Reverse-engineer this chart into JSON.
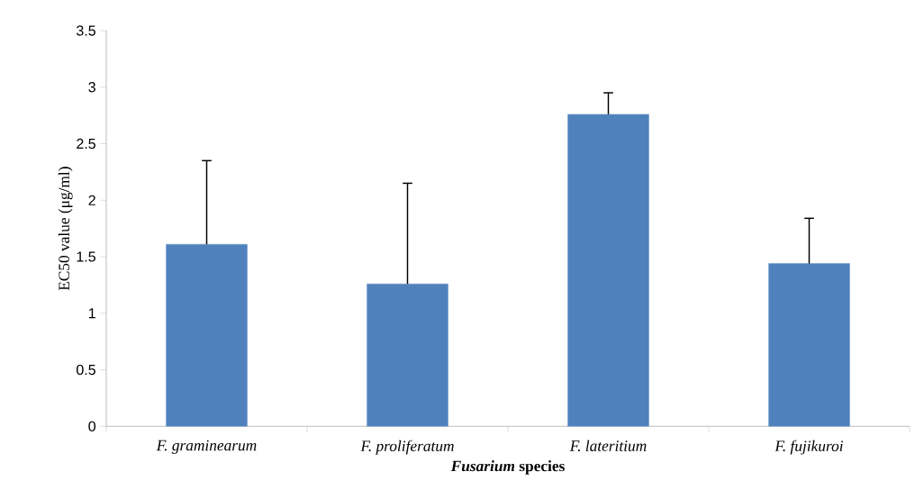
{
  "chart_data": {
    "type": "bar",
    "xlabel": "*Fusarium* species",
    "ylabel": "EC50 value (μg/ml)",
    "categories": [
      "F. graminearum",
      "F. proliferatum",
      "F. lateritium",
      "F. fujikuroi"
    ],
    "values": [
      1.61,
      1.26,
      2.76,
      1.44
    ],
    "errors": [
      [
        1.61,
        2.35
      ],
      [
        1.26,
        2.15
      ],
      [
        2.76,
        2.95
      ],
      [
        1.44,
        1.84
      ]
    ],
    "color": "#4f81bd",
    "ylim": [
      0,
      3.5
    ],
    "yticks": [
      0,
      0.5,
      1,
      1.5,
      2,
      2.5,
      3,
      3.5
    ],
    "grid": false
  }
}
